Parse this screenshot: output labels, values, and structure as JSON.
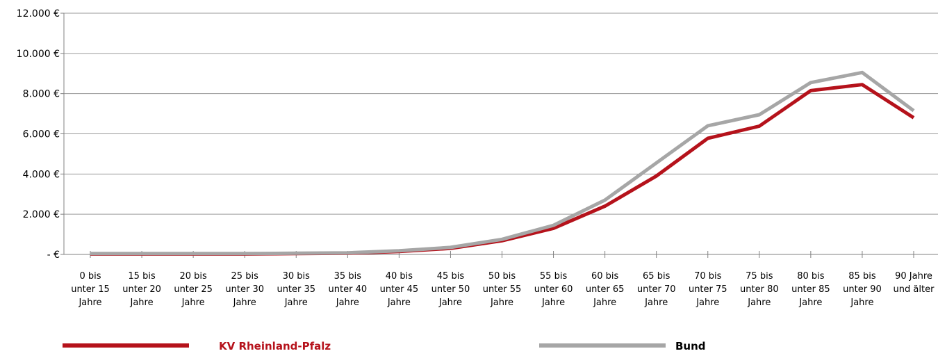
{
  "chart_data": {
    "type": "line",
    "categories": [
      [
        "0 bis",
        "unter 15",
        "Jahre"
      ],
      [
        "15 bis",
        "unter 20",
        "Jahre"
      ],
      [
        "20 bis",
        "unter 25",
        "Jahre"
      ],
      [
        "25 bis",
        "unter 30",
        "Jahre"
      ],
      [
        "30 bis",
        "unter 35",
        "Jahre"
      ],
      [
        "35 bis",
        "unter 40",
        "Jahre"
      ],
      [
        "40 bis",
        "unter 45",
        "Jahre"
      ],
      [
        "45 bis",
        "unter 50",
        "Jahre"
      ],
      [
        "50 bis",
        "unter 55",
        "Jahre"
      ],
      [
        "55 bis",
        "unter 60",
        "Jahre"
      ],
      [
        "60 bis",
        "unter 65",
        "Jahre"
      ],
      [
        "65 bis",
        "unter 70",
        "Jahre"
      ],
      [
        "70 bis",
        "unter 75",
        "Jahre"
      ],
      [
        "75 bis",
        "unter 80",
        "Jahre"
      ],
      [
        "80 bis",
        "unter 85",
        "Jahre"
      ],
      [
        "85 bis",
        "unter 90",
        "Jahre"
      ],
      [
        "90 Jahre",
        "und älter"
      ]
    ],
    "series": [
      {
        "name": "KV Rheinland-Pfalz",
        "color": "#b5121b",
        "values": [
          20,
          20,
          20,
          20,
          40,
          60,
          150,
          300,
          680,
          1300,
          2400,
          3900,
          5780,
          6380,
          8150,
          8450,
          6800
        ]
      },
      {
        "name": "Bund",
        "color": "#a6a6a6",
        "values": [
          40,
          40,
          40,
          40,
          60,
          80,
          180,
          350,
          750,
          1450,
          2700,
          4550,
          6400,
          6950,
          8550,
          9050,
          7150
        ]
      }
    ],
    "yticks": [
      {
        "value": 0,
        "label": "- €"
      },
      {
        "value": 2000,
        "label": "2.000 €"
      },
      {
        "value": 4000,
        "label": "4.000 €"
      },
      {
        "value": 6000,
        "label": "6.000 €"
      },
      {
        "value": 8000,
        "label": "8.000 €"
      },
      {
        "value": 10000,
        "label": "10.000 €"
      },
      {
        "value": 12000,
        "label": "12.000 €"
      }
    ],
    "ylim": [
      0,
      12000
    ],
    "grid": true,
    "legend_position": "bottom"
  }
}
